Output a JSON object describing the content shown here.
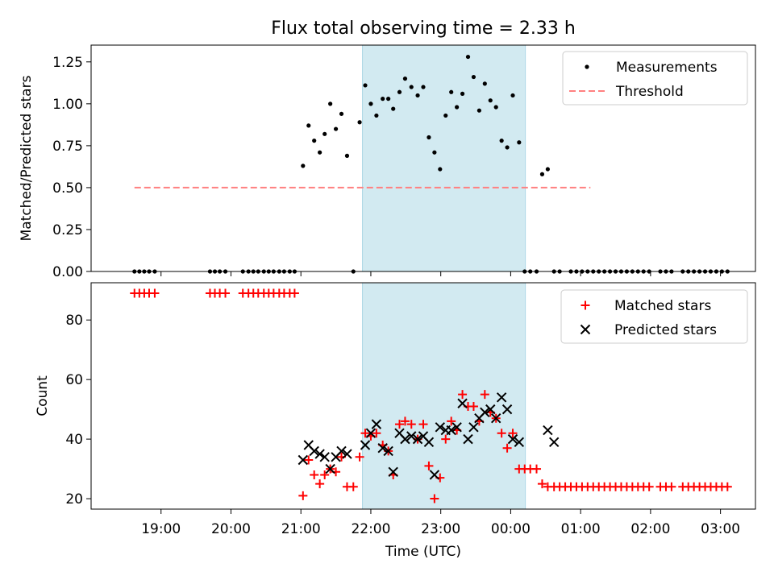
{
  "title": "Flux total observing time = 2.33 h",
  "chart_data": [
    {
      "type": "scatter",
      "panel": "top",
      "ylabel": "Matched/Predicted stars",
      "ylim": [
        0,
        1.35
      ],
      "yticks": [
        0.0,
        0.25,
        0.5,
        0.75,
        1.0,
        1.25
      ],
      "yticklabels": [
        "0.00",
        "0.25",
        "0.50",
        "0.75",
        "1.00",
        "1.25"
      ],
      "shaded_interval": {
        "start": 21.88,
        "end": 24.21,
        "color": "#add8e6"
      },
      "legend": {
        "position": "top-right",
        "entries": [
          "Measurements",
          "Threshold"
        ]
      },
      "threshold": {
        "name": "Threshold",
        "value": 0.5,
        "x_start": 18.62,
        "x_end": 25.14,
        "color": "#ff8080",
        "style": "dashed"
      },
      "measurements": {
        "name": "Measurements",
        "color": "#000000",
        "x": [
          18.62,
          18.69,
          18.76,
          18.83,
          18.91,
          19.7,
          19.77,
          19.84,
          19.92,
          20.17,
          20.25,
          20.32,
          20.39,
          20.47,
          20.54,
          20.61,
          20.69,
          20.76,
          20.84,
          20.91,
          21.03,
          21.11,
          21.19,
          21.27,
          21.34,
          21.42,
          21.5,
          21.58,
          21.66,
          21.75,
          21.84,
          21.92,
          22.0,
          22.08,
          22.17,
          22.25,
          22.32,
          22.41,
          22.49,
          22.58,
          22.67,
          22.75,
          22.83,
          22.91,
          22.99,
          23.07,
          23.15,
          23.23,
          23.31,
          23.39,
          23.47,
          23.55,
          23.63,
          23.71,
          23.79,
          23.87,
          23.95,
          24.03,
          24.12,
          24.2,
          24.28,
          24.37,
          24.45,
          24.53,
          24.62,
          24.7,
          24.86,
          24.94,
          25.02,
          25.1,
          25.18,
          25.26,
          25.34,
          25.42,
          25.5,
          25.58,
          25.66,
          25.74,
          25.82,
          25.9,
          25.98,
          26.14,
          26.22,
          26.3,
          26.46,
          26.54,
          26.62,
          26.7,
          26.78,
          26.86,
          26.94,
          27.02,
          27.1
        ],
        "y": [
          0,
          0,
          0,
          0,
          0,
          0,
          0,
          0,
          0,
          0,
          0,
          0,
          0,
          0,
          0,
          0,
          0,
          0,
          0,
          0,
          0.63,
          0.87,
          0.78,
          0.71,
          0.82,
          1.0,
          0.85,
          0.94,
          0.69,
          0,
          0.89,
          1.11,
          1.0,
          0.93,
          1.03,
          1.03,
          0.97,
          1.07,
          1.15,
          1.1,
          1.05,
          1.1,
          0.8,
          0.71,
          0.61,
          0.93,
          1.07,
          0.98,
          1.06,
          1.28,
          1.16,
          0.96,
          1.12,
          1.02,
          0.98,
          0.78,
          0.74,
          1.05,
          0.77,
          0,
          0,
          0,
          0.58,
          0.61,
          0,
          0,
          0,
          0,
          0,
          0,
          0,
          0,
          0,
          0,
          0,
          0,
          0,
          0,
          0,
          0,
          0,
          0,
          0,
          0,
          0,
          0,
          0,
          0,
          0,
          0,
          0,
          0,
          0
        ]
      }
    },
    {
      "type": "scatter",
      "panel": "bottom",
      "xlabel": "Time (UTC)",
      "ylabel": "Count",
      "xlim": [
        18.0,
        27.5
      ],
      "ylim": [
        16.5,
        92.5
      ],
      "yticks": [
        20,
        40,
        60,
        80
      ],
      "yticklabels": [
        "20",
        "40",
        "60",
        "80"
      ],
      "xticks": [
        19,
        20,
        21,
        22,
        23,
        24,
        25,
        26,
        27
      ],
      "xticklabels": [
        "19:00",
        "20:00",
        "21:00",
        "22:00",
        "23:00",
        "00:00",
        "01:00",
        "02:00",
        "03:00"
      ],
      "shaded_interval": {
        "start": 21.88,
        "end": 24.21,
        "color": "#add8e6"
      },
      "legend": {
        "position": "top-right",
        "entries": [
          "Matched stars",
          "Predicted stars"
        ]
      },
      "matched": {
        "name": "Matched stars",
        "color": "#ff0000",
        "marker": "plus",
        "x": [
          18.62,
          18.69,
          18.76,
          18.83,
          18.91,
          19.7,
          19.77,
          19.84,
          19.92,
          20.17,
          20.25,
          20.32,
          20.39,
          20.47,
          20.54,
          20.61,
          20.69,
          20.76,
          20.84,
          20.91,
          21.03,
          21.11,
          21.19,
          21.27,
          21.34,
          21.42,
          21.5,
          21.58,
          21.66,
          21.75,
          21.84,
          21.92,
          22.0,
          22.08,
          22.17,
          22.25,
          22.32,
          22.41,
          22.49,
          22.58,
          22.67,
          22.75,
          22.83,
          22.91,
          22.99,
          23.07,
          23.15,
          23.23,
          23.31,
          23.39,
          23.47,
          23.55,
          23.63,
          23.71,
          23.79,
          23.87,
          23.95,
          24.03,
          24.12,
          24.2,
          24.28,
          24.37,
          24.45,
          24.53,
          24.62,
          24.7,
          24.78,
          24.86,
          24.94,
          25.02,
          25.1,
          25.18,
          25.26,
          25.34,
          25.42,
          25.5,
          25.58,
          25.66,
          25.74,
          25.82,
          25.9,
          25.98,
          26.14,
          26.22,
          26.3,
          26.46,
          26.54,
          26.62,
          26.7,
          26.78,
          26.86,
          26.94,
          27.02,
          27.1
        ],
        "y": [
          89,
          89,
          89,
          89,
          89,
          89,
          89,
          89,
          89,
          89,
          89,
          89,
          89,
          89,
          89,
          89,
          89,
          89,
          89,
          89,
          21,
          33,
          28,
          25,
          28,
          30,
          29,
          34,
          24,
          24,
          34,
          42,
          41,
          42,
          38,
          36,
          28,
          45,
          46,
          45,
          40,
          45,
          31,
          20,
          27,
          40,
          46,
          43,
          55,
          51,
          51,
          46,
          55,
          49,
          47,
          42,
          37,
          42,
          30,
          30,
          30,
          30,
          25,
          24,
          24,
          24,
          24,
          24,
          24,
          24,
          24,
          24,
          24,
          24,
          24,
          24,
          24,
          24,
          24,
          24,
          24,
          24,
          24,
          24,
          24,
          24,
          24,
          24,
          24,
          24,
          24,
          24,
          24,
          24
        ]
      },
      "predicted": {
        "name": "Predicted stars",
        "color": "#000000",
        "marker": "x",
        "x": [
          21.03,
          21.11,
          21.19,
          21.27,
          21.34,
          21.42,
          21.5,
          21.58,
          21.66,
          21.92,
          22.0,
          22.08,
          22.17,
          22.25,
          22.32,
          22.41,
          22.49,
          22.58,
          22.67,
          22.75,
          22.83,
          22.91,
          22.99,
          23.07,
          23.15,
          23.23,
          23.31,
          23.39,
          23.47,
          23.55,
          23.63,
          23.71,
          23.79,
          23.87,
          23.95,
          24.03,
          24.12,
          24.53,
          24.62
        ],
        "y": [
          33,
          38,
          36,
          35,
          34,
          30,
          34,
          36,
          35,
          38,
          42,
          45,
          37,
          36,
          29,
          42,
          40,
          41,
          40,
          41,
          39,
          28,
          44,
          43,
          43,
          44,
          52,
          40,
          44,
          47,
          49,
          50,
          47,
          54,
          50,
          40,
          39,
          43,
          39
        ]
      }
    }
  ]
}
